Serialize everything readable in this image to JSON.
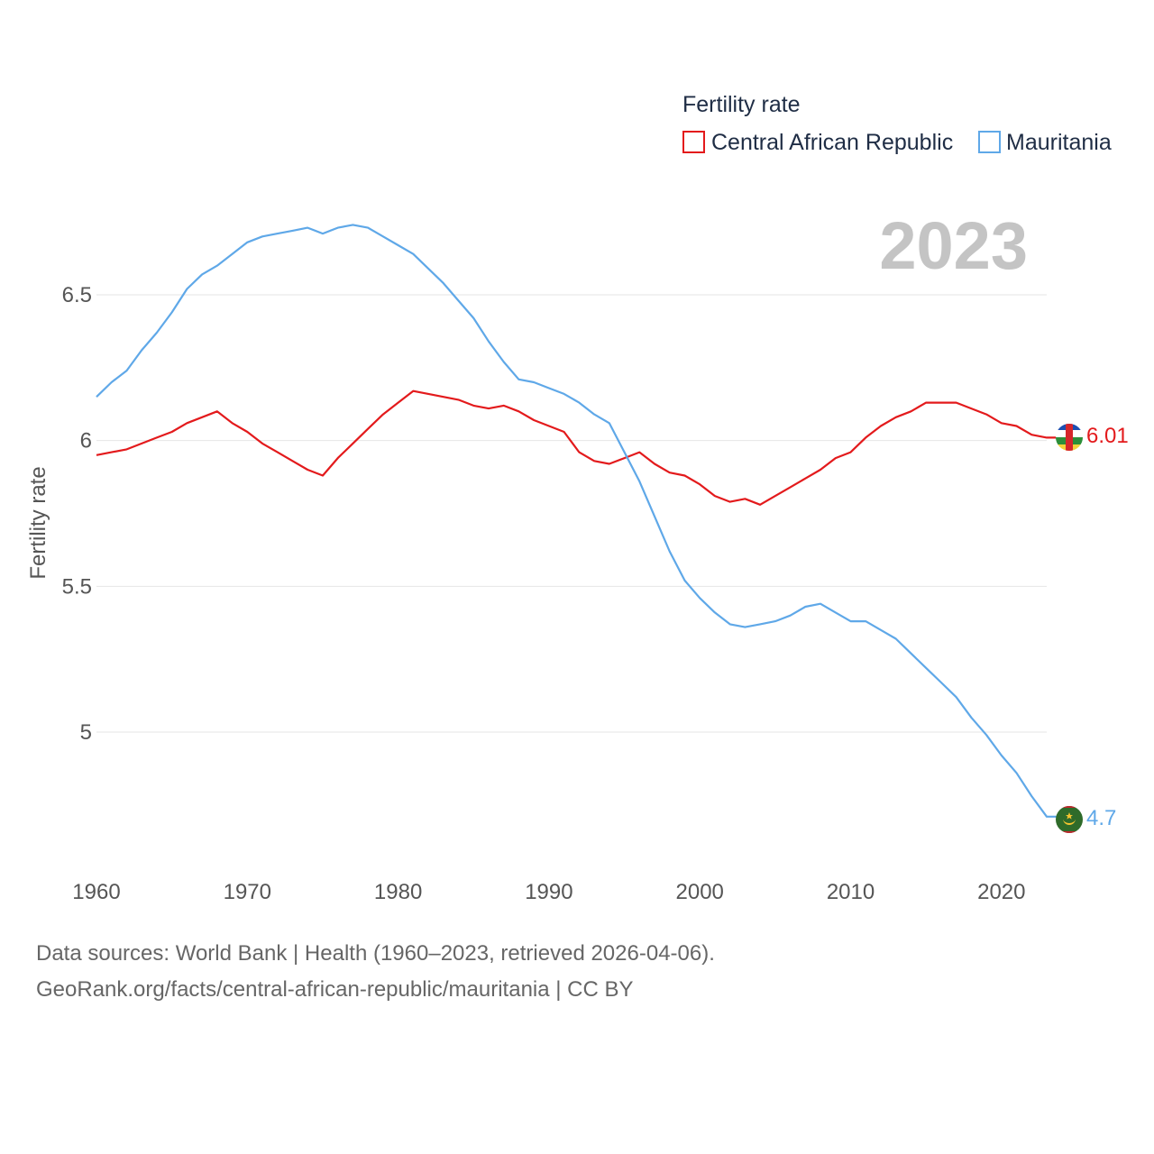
{
  "chart_data": {
    "type": "line",
    "title": "",
    "legend_title": "Fertility rate",
    "ylabel": "Fertility rate",
    "xlabel": "",
    "current_year": "2023",
    "xlim": [
      1960,
      2023
    ],
    "ylim": [
      4.65,
      6.75
    ],
    "x_ticks": [
      1960,
      1970,
      1980,
      1990,
      2000,
      2010,
      2020
    ],
    "x_tick_labels": [
      "1960",
      "1970",
      "1980",
      "1990",
      "2000",
      "2010",
      "2020"
    ],
    "y_ticks": [
      5,
      5.5,
      6,
      6.5
    ],
    "y_tick_labels": [
      "5",
      "5.5",
      "6",
      "6.5"
    ],
    "x": [
      1960,
      1961,
      1962,
      1963,
      1964,
      1965,
      1966,
      1967,
      1968,
      1969,
      1970,
      1971,
      1972,
      1973,
      1974,
      1975,
      1976,
      1977,
      1978,
      1979,
      1980,
      1981,
      1982,
      1983,
      1984,
      1985,
      1986,
      1987,
      1988,
      1989,
      1990,
      1991,
      1992,
      1993,
      1994,
      1995,
      1996,
      1997,
      1998,
      1999,
      2000,
      2001,
      2002,
      2003,
      2004,
      2005,
      2006,
      2007,
      2008,
      2009,
      2010,
      2011,
      2012,
      2013,
      2014,
      2015,
      2016,
      2017,
      2018,
      2019,
      2020,
      2021,
      2022,
      2023
    ],
    "series": [
      {
        "name": "Central African Republic",
        "color": "#e31a1c",
        "end_label": "6.01",
        "values": [
          5.95,
          5.96,
          5.97,
          5.99,
          6.01,
          6.03,
          6.06,
          6.08,
          6.1,
          6.06,
          6.03,
          5.99,
          5.96,
          5.93,
          5.9,
          5.88,
          5.94,
          5.99,
          6.04,
          6.09,
          6.13,
          6.17,
          6.16,
          6.15,
          6.14,
          6.12,
          6.11,
          6.12,
          6.1,
          6.07,
          6.05,
          6.03,
          5.96,
          5.93,
          5.92,
          5.94,
          5.96,
          5.92,
          5.89,
          5.88,
          5.85,
          5.81,
          5.79,
          5.8,
          5.78,
          5.81,
          5.84,
          5.87,
          5.9,
          5.94,
          5.96,
          6.01,
          6.05,
          6.08,
          6.1,
          6.13,
          6.13,
          6.13,
          6.11,
          6.09,
          6.06,
          6.05,
          6.02,
          6.01
        ]
      },
      {
        "name": "Mauritania",
        "color": "#5fa8e8",
        "end_label": "4.7",
        "values": [
          6.15,
          6.2,
          6.24,
          6.31,
          6.37,
          6.44,
          6.52,
          6.57,
          6.6,
          6.64,
          6.68,
          6.7,
          6.71,
          6.72,
          6.73,
          6.71,
          6.73,
          6.74,
          6.73,
          6.7,
          6.67,
          6.64,
          6.59,
          6.54,
          6.48,
          6.42,
          6.34,
          6.27,
          6.21,
          6.2,
          6.18,
          6.16,
          6.13,
          6.09,
          6.06,
          5.96,
          5.86,
          5.74,
          5.62,
          5.52,
          5.46,
          5.41,
          5.37,
          5.36,
          5.37,
          5.38,
          5.4,
          5.43,
          5.44,
          5.41,
          5.38,
          5.38,
          5.35,
          5.32,
          5.27,
          5.22,
          5.17,
          5.12,
          5.05,
          4.99,
          4.92,
          4.86,
          4.78,
          4.71
        ]
      }
    ]
  },
  "footer": {
    "line1": "Data sources: World Bank | Health (1960–2023, retrieved 2026-04-06).",
    "line2": "GeoRank.org/facts/central-african-republic/mauritania | CC BY"
  },
  "flags": {
    "car_icon": "central-african-republic-flag-icon",
    "mauritania_icon": "mauritania-flag-icon"
  }
}
